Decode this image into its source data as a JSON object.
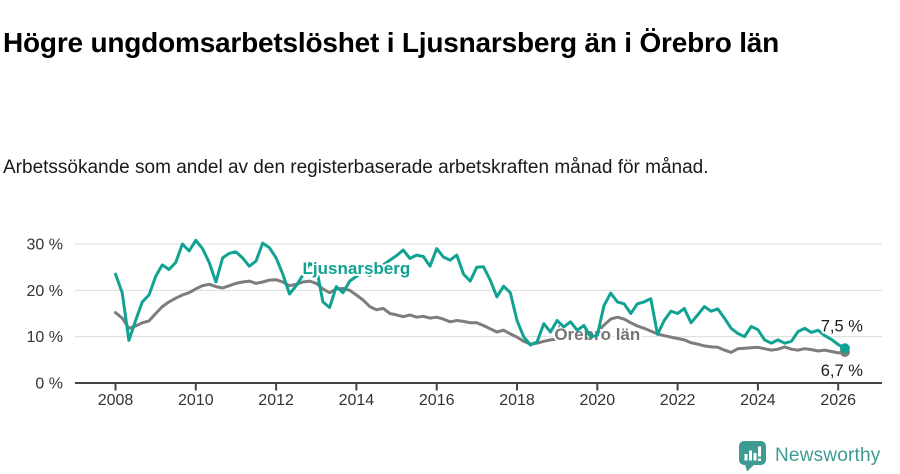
{
  "chart_data": {
    "type": "line",
    "title": "Högre ungdomsarbetslöshet i Ljusnarsberg än i Örebro län",
    "subtitle": "Arbetssökande som andel av den registerbaserade arbetskraften månad för månad.",
    "x_start_year": 2008,
    "x_points_per_year": 6,
    "xlim": [
      2007.3,
      2027.1
    ],
    "ylim": [
      0,
      32
    ],
    "grid": "horizontal",
    "x_ticks": [
      "2008",
      "2010",
      "2012",
      "2014",
      "2016",
      "2018",
      "2020",
      "2022",
      "2024",
      "2026"
    ],
    "y_ticks": [
      {
        "label": "0 %",
        "value": 0
      },
      {
        "label": "10 %",
        "value": 10
      },
      {
        "label": "20 %",
        "value": 20
      },
      {
        "label": "30 %",
        "value": 30
      }
    ],
    "series": [
      {
        "name": "Örebro län",
        "slug": "orebro-lan",
        "color": "#7d7d7d",
        "label_color": "#757575",
        "label_pos": {
          "x": 2020.0,
          "y": 10.6
        },
        "end_label": "6,7 %",
        "end_label_pos": "below",
        "values": [
          15.2,
          14.0,
          11.8,
          12.3,
          13.0,
          13.4,
          15.0,
          16.5,
          17.5,
          18.3,
          19.0,
          19.5,
          20.3,
          21.0,
          21.3,
          20.8,
          20.5,
          21.0,
          21.5,
          21.8,
          22.0,
          21.5,
          21.8,
          22.2,
          22.3,
          21.8,
          21.0,
          21.3,
          21.8,
          22.0,
          21.5,
          20.3,
          19.5,
          20.3,
          20.4,
          20.0,
          19.0,
          17.9,
          16.5,
          15.8,
          16.1,
          15.0,
          14.7,
          14.3,
          14.7,
          14.2,
          14.4,
          14.0,
          14.2,
          13.8,
          13.2,
          13.5,
          13.3,
          13.0,
          13.0,
          12.4,
          11.7,
          11.0,
          11.4,
          10.6,
          9.9,
          9.0,
          8.4,
          8.6,
          9.0,
          9.3,
          9.5,
          9.7,
          9.9,
          10.0,
          10.2,
          10.5,
          11.0,
          12.5,
          13.8,
          14.2,
          13.8,
          13.0,
          12.3,
          11.8,
          11.2,
          10.6,
          10.2,
          9.9,
          9.6,
          9.3,
          8.7,
          8.4,
          8.0,
          7.8,
          7.7,
          7.1,
          6.6,
          7.4,
          7.5,
          7.6,
          7.7,
          7.4,
          7.1,
          7.3,
          7.8,
          7.3,
          7.1,
          7.4,
          7.2,
          6.9,
          7.1,
          6.8,
          6.5,
          6.7
        ]
      },
      {
        "name": "Ljusnarsberg",
        "slug": "ljusnarsberg",
        "color": "#10a292",
        "label_color": "#10a292",
        "label_pos": {
          "x": 2014.0,
          "y": 24.8
        },
        "end_label": "7,5 %",
        "end_label_pos": "above",
        "values": [
          23.5,
          19.5,
          9.2,
          13.5,
          17.5,
          19.0,
          23.0,
          25.5,
          24.5,
          26.0,
          30.0,
          28.5,
          30.8,
          29.0,
          26.0,
          21.8,
          27.0,
          28.0,
          28.3,
          27.0,
          25.2,
          26.3,
          30.2,
          29.2,
          27.0,
          23.5,
          19.2,
          21.0,
          23.3,
          25.8,
          25.0,
          17.5,
          16.3,
          20.8,
          19.5,
          22.0,
          23.0,
          24.0,
          23.2,
          24.5,
          25.5,
          26.5,
          27.5,
          28.7,
          26.9,
          27.6,
          27.3,
          25.2,
          29.0,
          27.2,
          26.5,
          27.6,
          23.5,
          22.0,
          25.0,
          25.1,
          22.2,
          18.6,
          20.9,
          19.5,
          13.5,
          10.0,
          8.2,
          8.9,
          12.8,
          11.0,
          13.5,
          12.1,
          13.2,
          11.4,
          12.4,
          10.0,
          10.3,
          16.7,
          19.4,
          17.5,
          17.1,
          15.0,
          17.1,
          17.5,
          18.2,
          10.5,
          13.5,
          15.5,
          15.0,
          16.1,
          13.0,
          14.7,
          16.5,
          15.5,
          16.0,
          14.0,
          11.8,
          10.7,
          10.0,
          12.2,
          11.5,
          9.3,
          8.6,
          9.3,
          8.6,
          9.0,
          11.1,
          11.8,
          10.9,
          11.4,
          10.2,
          9.4,
          8.3,
          7.5
        ]
      }
    ]
  },
  "footer": {
    "brand": "Newsworthy",
    "brand_color": "#3e9b94"
  }
}
